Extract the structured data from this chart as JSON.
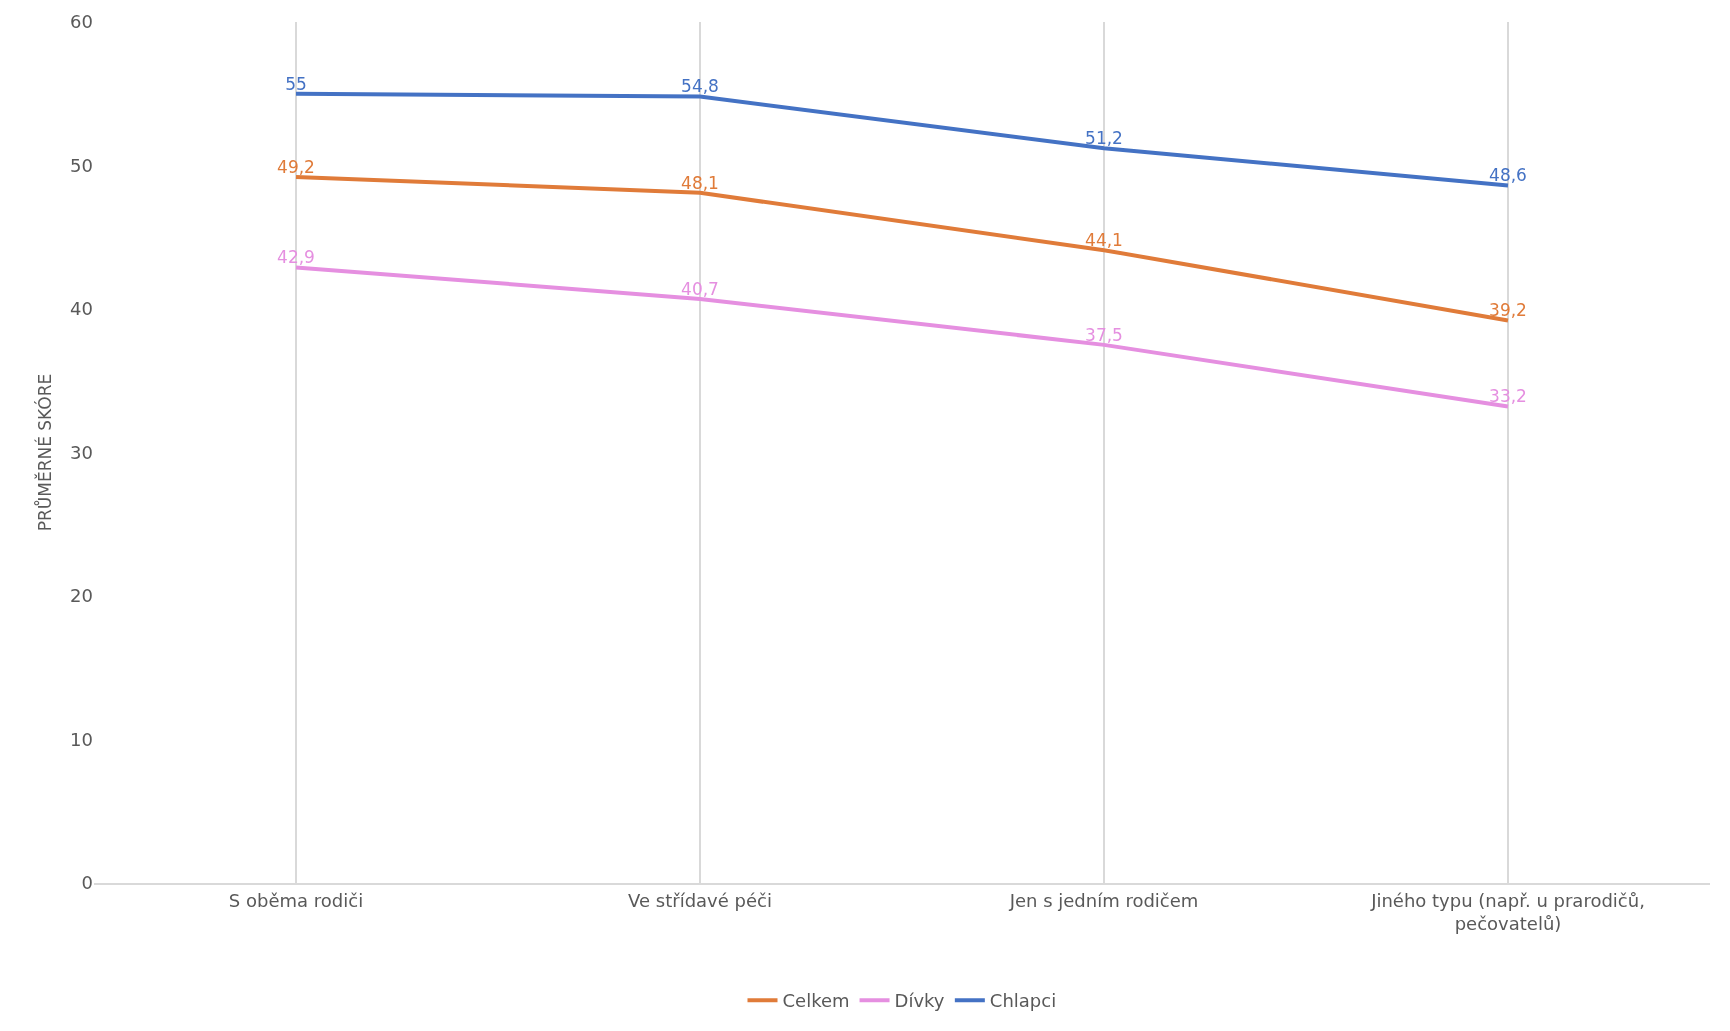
{
  "chart_data": {
    "type": "line",
    "ylabel": "PRŮMĚRNÉ SKÓRE",
    "categories": [
      "S oběma rodiči",
      "Ve střídavé péči",
      "Jen s jedním rodičem",
      "Jiného typu (např. u prarodičů, pečovatelů)"
    ],
    "series": [
      {
        "name": "Celkem",
        "color": "#e07b39",
        "values": [
          49.2,
          48.1,
          44.1,
          39.2
        ],
        "value_labels": [
          "49,2",
          "48,1",
          "44,1",
          "39,2"
        ]
      },
      {
        "name": "Dívky",
        "color": "#e58fe0",
        "values": [
          42.9,
          40.7,
          37.5,
          33.2
        ],
        "value_labels": [
          "42,9",
          "40,7",
          "37,5",
          "33,2"
        ]
      },
      {
        "name": "Chlapci",
        "color": "#4472c4",
        "values": [
          55,
          54.8,
          51.2,
          48.6
        ],
        "value_labels": [
          "55",
          "54,8",
          "51,2",
          "48,6"
        ]
      }
    ],
    "ylim": [
      0,
      60
    ],
    "yticks": [
      0,
      10,
      20,
      30,
      40,
      50,
      60
    ],
    "grid": "x",
    "legend": "bottom",
    "marker": "none",
    "line_style": "solid"
  }
}
